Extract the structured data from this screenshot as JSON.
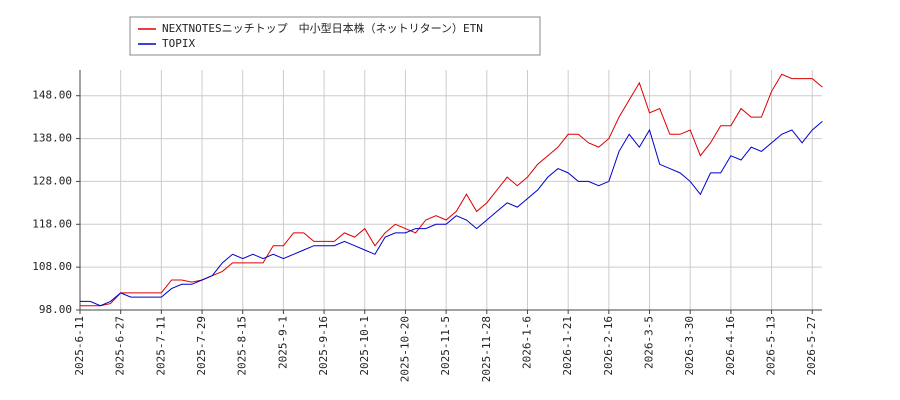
{
  "chart_data": {
    "type": "line",
    "categories": [
      "2025-6-11",
      null,
      null,
      null,
      "2025-6-27",
      null,
      null,
      null,
      "2025-7-11",
      null,
      null,
      null,
      "2025-7-29",
      null,
      null,
      null,
      "2025-8-15",
      null,
      null,
      null,
      "2025-9-1",
      null,
      null,
      null,
      "2025-9-16",
      null,
      null,
      null,
      "2025-10-1",
      null,
      null,
      null,
      "2025-10-20",
      null,
      null,
      null,
      "2025-11-5",
      null,
      null,
      null,
      "2025-11-28",
      null,
      null,
      null,
      "2026-1-6",
      null,
      null,
      null,
      "2026-1-21",
      null,
      null,
      null,
      "2026-2-16",
      null,
      null,
      null,
      "2026-3-5",
      null,
      null,
      null,
      "2026-3-30",
      null,
      null,
      null,
      "2026-4-16",
      null,
      null,
      null,
      "2026-5-13",
      null,
      null,
      null,
      "2026-5-27",
      null
    ],
    "series": [
      {
        "name": "NEXTNOTESニッチトップ　中小型日本株（ネットリターン）ETN",
        "color": "#dd0000",
        "values": [
          99,
          99,
          99,
          99.5,
          102,
          102,
          102,
          102,
          102,
          105,
          105,
          104.5,
          105,
          106,
          107,
          109,
          109,
          109,
          109,
          113,
          113,
          116,
          116,
          114,
          114,
          114,
          116,
          115,
          117,
          113,
          116,
          118,
          117,
          116,
          119,
          120,
          119,
          121,
          125,
          121,
          123,
          126,
          129,
          127,
          129,
          132,
          134,
          136,
          139,
          139,
          137,
          136,
          138,
          143,
          147,
          151,
          144,
          145,
          139,
          139,
          140,
          134,
          137,
          141,
          141,
          145,
          143,
          143,
          149,
          153,
          152,
          152,
          152,
          150
        ]
      },
      {
        "name": "TOPIX",
        "color": "#0000cc",
        "values": [
          100,
          100,
          99,
          100,
          102,
          101,
          101,
          101,
          101,
          103,
          104,
          104,
          105,
          106,
          109,
          111,
          110,
          111,
          110,
          111,
          110,
          111,
          112,
          113,
          113,
          113,
          114,
          113,
          112,
          111,
          115,
          116,
          116,
          117,
          117,
          118,
          118,
          120,
          119,
          117,
          119,
          121,
          123,
          122,
          124,
          126,
          129,
          131,
          130,
          128,
          128,
          127,
          128,
          135,
          139,
          136,
          140,
          132,
          131,
          130,
          128,
          125,
          130,
          130,
          134,
          133,
          136,
          135,
          137,
          139,
          140,
          137,
          140,
          142
        ]
      }
    ],
    "ylim": [
      98,
      154
    ],
    "yticks": [
      {
        "value": 98,
        "label": "98.00"
      },
      {
        "value": 108,
        "label": "108.00"
      },
      {
        "value": 118,
        "label": "118.00"
      },
      {
        "value": 128,
        "label": "128.00"
      },
      {
        "value": 138,
        "label": "138.00"
      },
      {
        "value": 148,
        "label": "148.00"
      }
    ],
    "grid": true
  }
}
